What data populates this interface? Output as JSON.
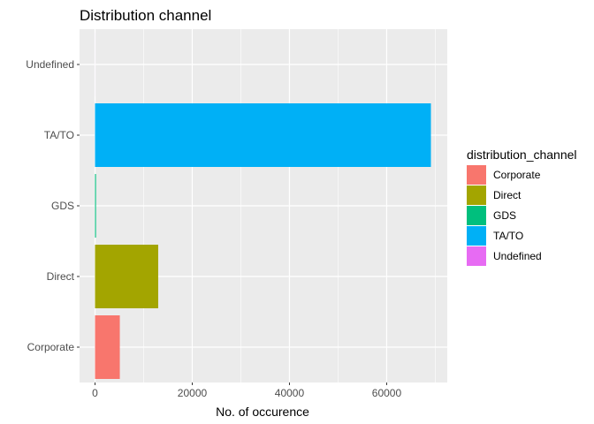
{
  "chart_data": {
    "type": "bar",
    "orientation": "horizontal",
    "title": "Distribution channel",
    "xlabel": "No. of occurence",
    "ylabel": "",
    "categories": [
      "Corporate",
      "Direct",
      "GDS",
      "TA/TO",
      "Undefined"
    ],
    "values": [
      5100,
      13000,
      200,
      69100,
      5
    ],
    "colors": [
      "#F8766D",
      "#A3A500",
      "#00BF7D",
      "#00B0F6",
      "#E76BF3"
    ],
    "xlim": [
      0,
      72000
    ],
    "xticks": [
      0,
      20000,
      40000,
      60000
    ],
    "xtick_labels": [
      "0",
      "20000",
      "40000",
      "60000"
    ],
    "grid": true,
    "legend": {
      "title": "distribution_channel",
      "placement": "right",
      "entries": [
        "Corporate",
        "Direct",
        "GDS",
        "TA/TO",
        "Undefined"
      ]
    },
    "panel_background": "#EBEBEB",
    "grid_color": "#FFFFFF"
  }
}
